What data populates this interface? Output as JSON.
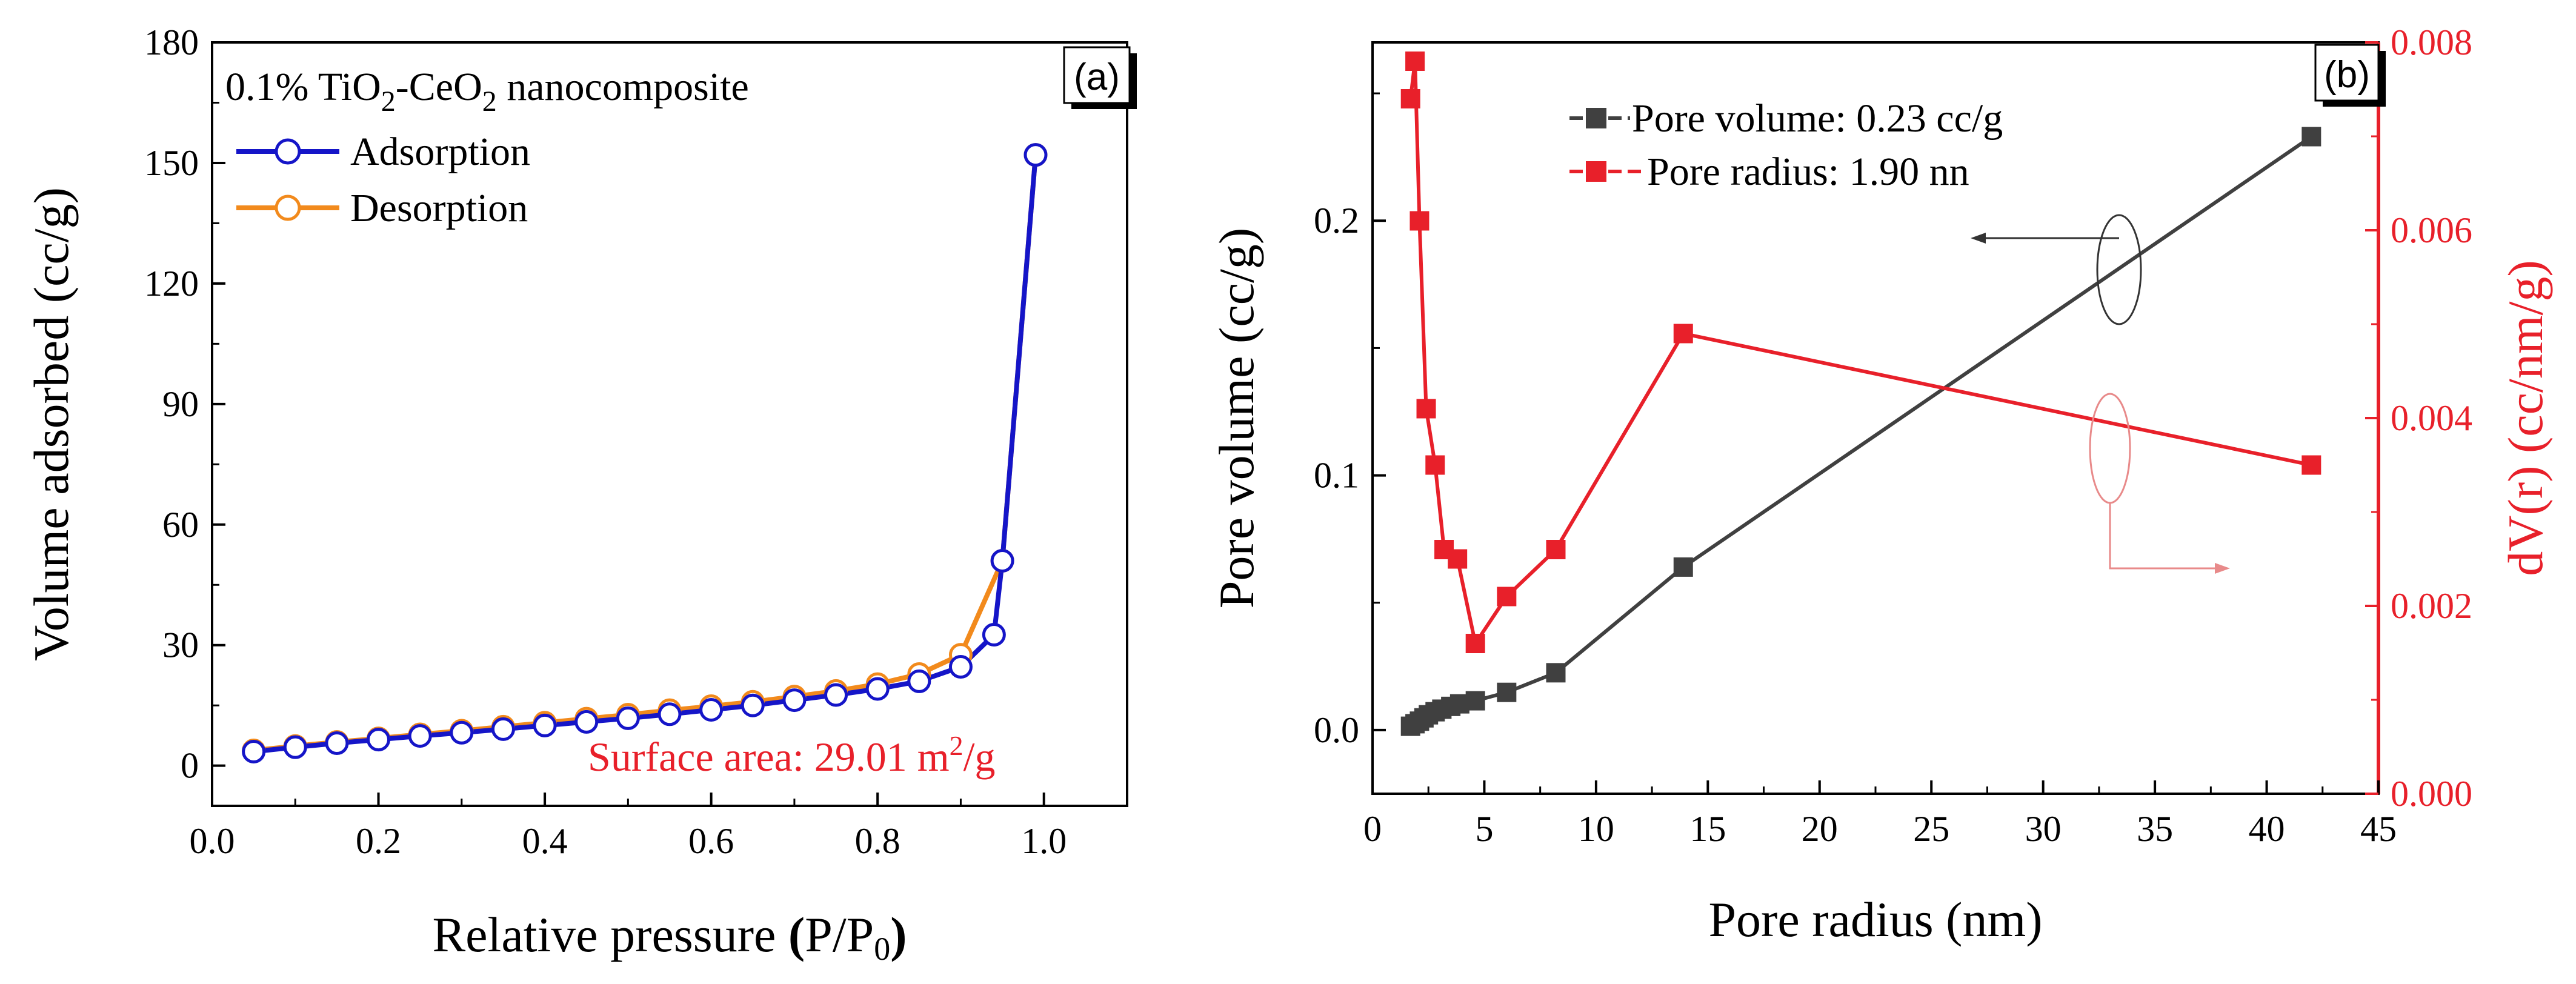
{
  "chart_data": [
    {
      "panel_label": "(a)",
      "type": "line",
      "title": "0.1% TiO2-CeO2 nanocomposite",
      "title_parts": {
        "t1": "0.1% TiO",
        "s1": "2",
        "t2": "-CeO",
        "s2": "2",
        "t3": " nanocomposite"
      },
      "xlabel": "Relative pressure",
      "xlabel_parts": {
        "prefix": "Relative pressure ",
        "paren_open": "(",
        "inner": "P/P",
        "sub": "0",
        "paren_close": ")"
      },
      "ylabel": "Volume adsorbed (cc/g)",
      "xlim": [
        0.0,
        1.1
      ],
      "ylim": [
        -10,
        180
      ],
      "xticks": [
        "0.0",
        "0.2",
        "0.4",
        "0.6",
        "0.8",
        "1.0"
      ],
      "yticks": [
        "0",
        "30",
        "60",
        "90",
        "120",
        "150",
        "180"
      ],
      "annotation": {
        "text": "Surface area: 29.01 m",
        "sup": "2",
        "tail": "/g",
        "color": "#e8202a"
      },
      "series": [
        {
          "name": "Adsorption",
          "color": "#1515c8",
          "x": [
            0.05,
            0.1,
            0.15,
            0.2,
            0.25,
            0.3,
            0.35,
            0.4,
            0.45,
            0.5,
            0.55,
            0.6,
            0.65,
            0.7,
            0.75,
            0.8,
            0.85,
            0.9,
            0.94,
            0.95,
            0.99
          ],
          "y": [
            3.5,
            4.6,
            5.6,
            6.5,
            7.4,
            8.2,
            9.1,
            10.0,
            10.9,
            11.8,
            12.8,
            13.9,
            15.0,
            16.3,
            17.6,
            19.1,
            21.0,
            24.6,
            32.6,
            51.0,
            152.0
          ]
        },
        {
          "name": "Desorption",
          "color": "#f28a1c",
          "x": [
            0.05,
            0.1,
            0.15,
            0.2,
            0.25,
            0.3,
            0.35,
            0.4,
            0.45,
            0.5,
            0.55,
            0.6,
            0.65,
            0.7,
            0.75,
            0.8,
            0.85,
            0.9,
            0.95,
            0.99
          ],
          "y": [
            3.8,
            4.9,
            5.9,
            6.8,
            7.8,
            8.7,
            9.7,
            10.7,
            11.7,
            12.7,
            13.8,
            14.8,
            15.9,
            17.2,
            18.6,
            20.3,
            22.8,
            27.6,
            51.0,
            152.0
          ]
        }
      ]
    },
    {
      "panel_label": "(b)",
      "type": "line",
      "xlabel": "Pore radius (nm)",
      "ylabel": "Pore volume (cc/g)",
      "y2label": "dV(r) (cc/nm/g)",
      "xlim": [
        0,
        45
      ],
      "ylim": [
        -0.025,
        0.27
      ],
      "y2lim": [
        0.0,
        0.008
      ],
      "xticks": [
        "0",
        "5",
        "10",
        "15",
        "20",
        "25",
        "30",
        "35",
        "40",
        "45"
      ],
      "yticks": [
        "0.0",
        "0.1",
        "0.2"
      ],
      "y2ticks": [
        "0.000",
        "0.002",
        "0.004",
        "0.006",
        "0.008"
      ],
      "y2color": "#e8202a",
      "series": [
        {
          "name": "Pore volume: 0.23 cc/g",
          "color": "#404040",
          "axis": "left",
          "x": [
            1.7,
            1.9,
            2.1,
            2.3,
            2.5,
            2.8,
            3.1,
            3.5,
            3.9,
            4.6,
            6.0,
            8.2,
            13.9,
            42.0
          ],
          "y": [
            0.0015,
            0.0025,
            0.0035,
            0.0048,
            0.006,
            0.0072,
            0.0082,
            0.0093,
            0.0103,
            0.0115,
            0.0148,
            0.0225,
            0.064,
            0.233
          ]
        },
        {
          "name": "Pore radius: 1.90 nn",
          "color": "#e8202a",
          "axis": "right",
          "x": [
            1.7,
            1.9,
            2.1,
            2.4,
            2.8,
            3.2,
            3.8,
            4.6,
            6.0,
            8.2,
            13.9,
            42.0
          ],
          "y": [
            0.0074,
            0.0078,
            0.0061,
            0.0041,
            0.0035,
            0.0026,
            0.0025,
            0.0016,
            0.0021,
            0.0026,
            0.0049,
            0.0035
          ]
        }
      ]
    }
  ]
}
